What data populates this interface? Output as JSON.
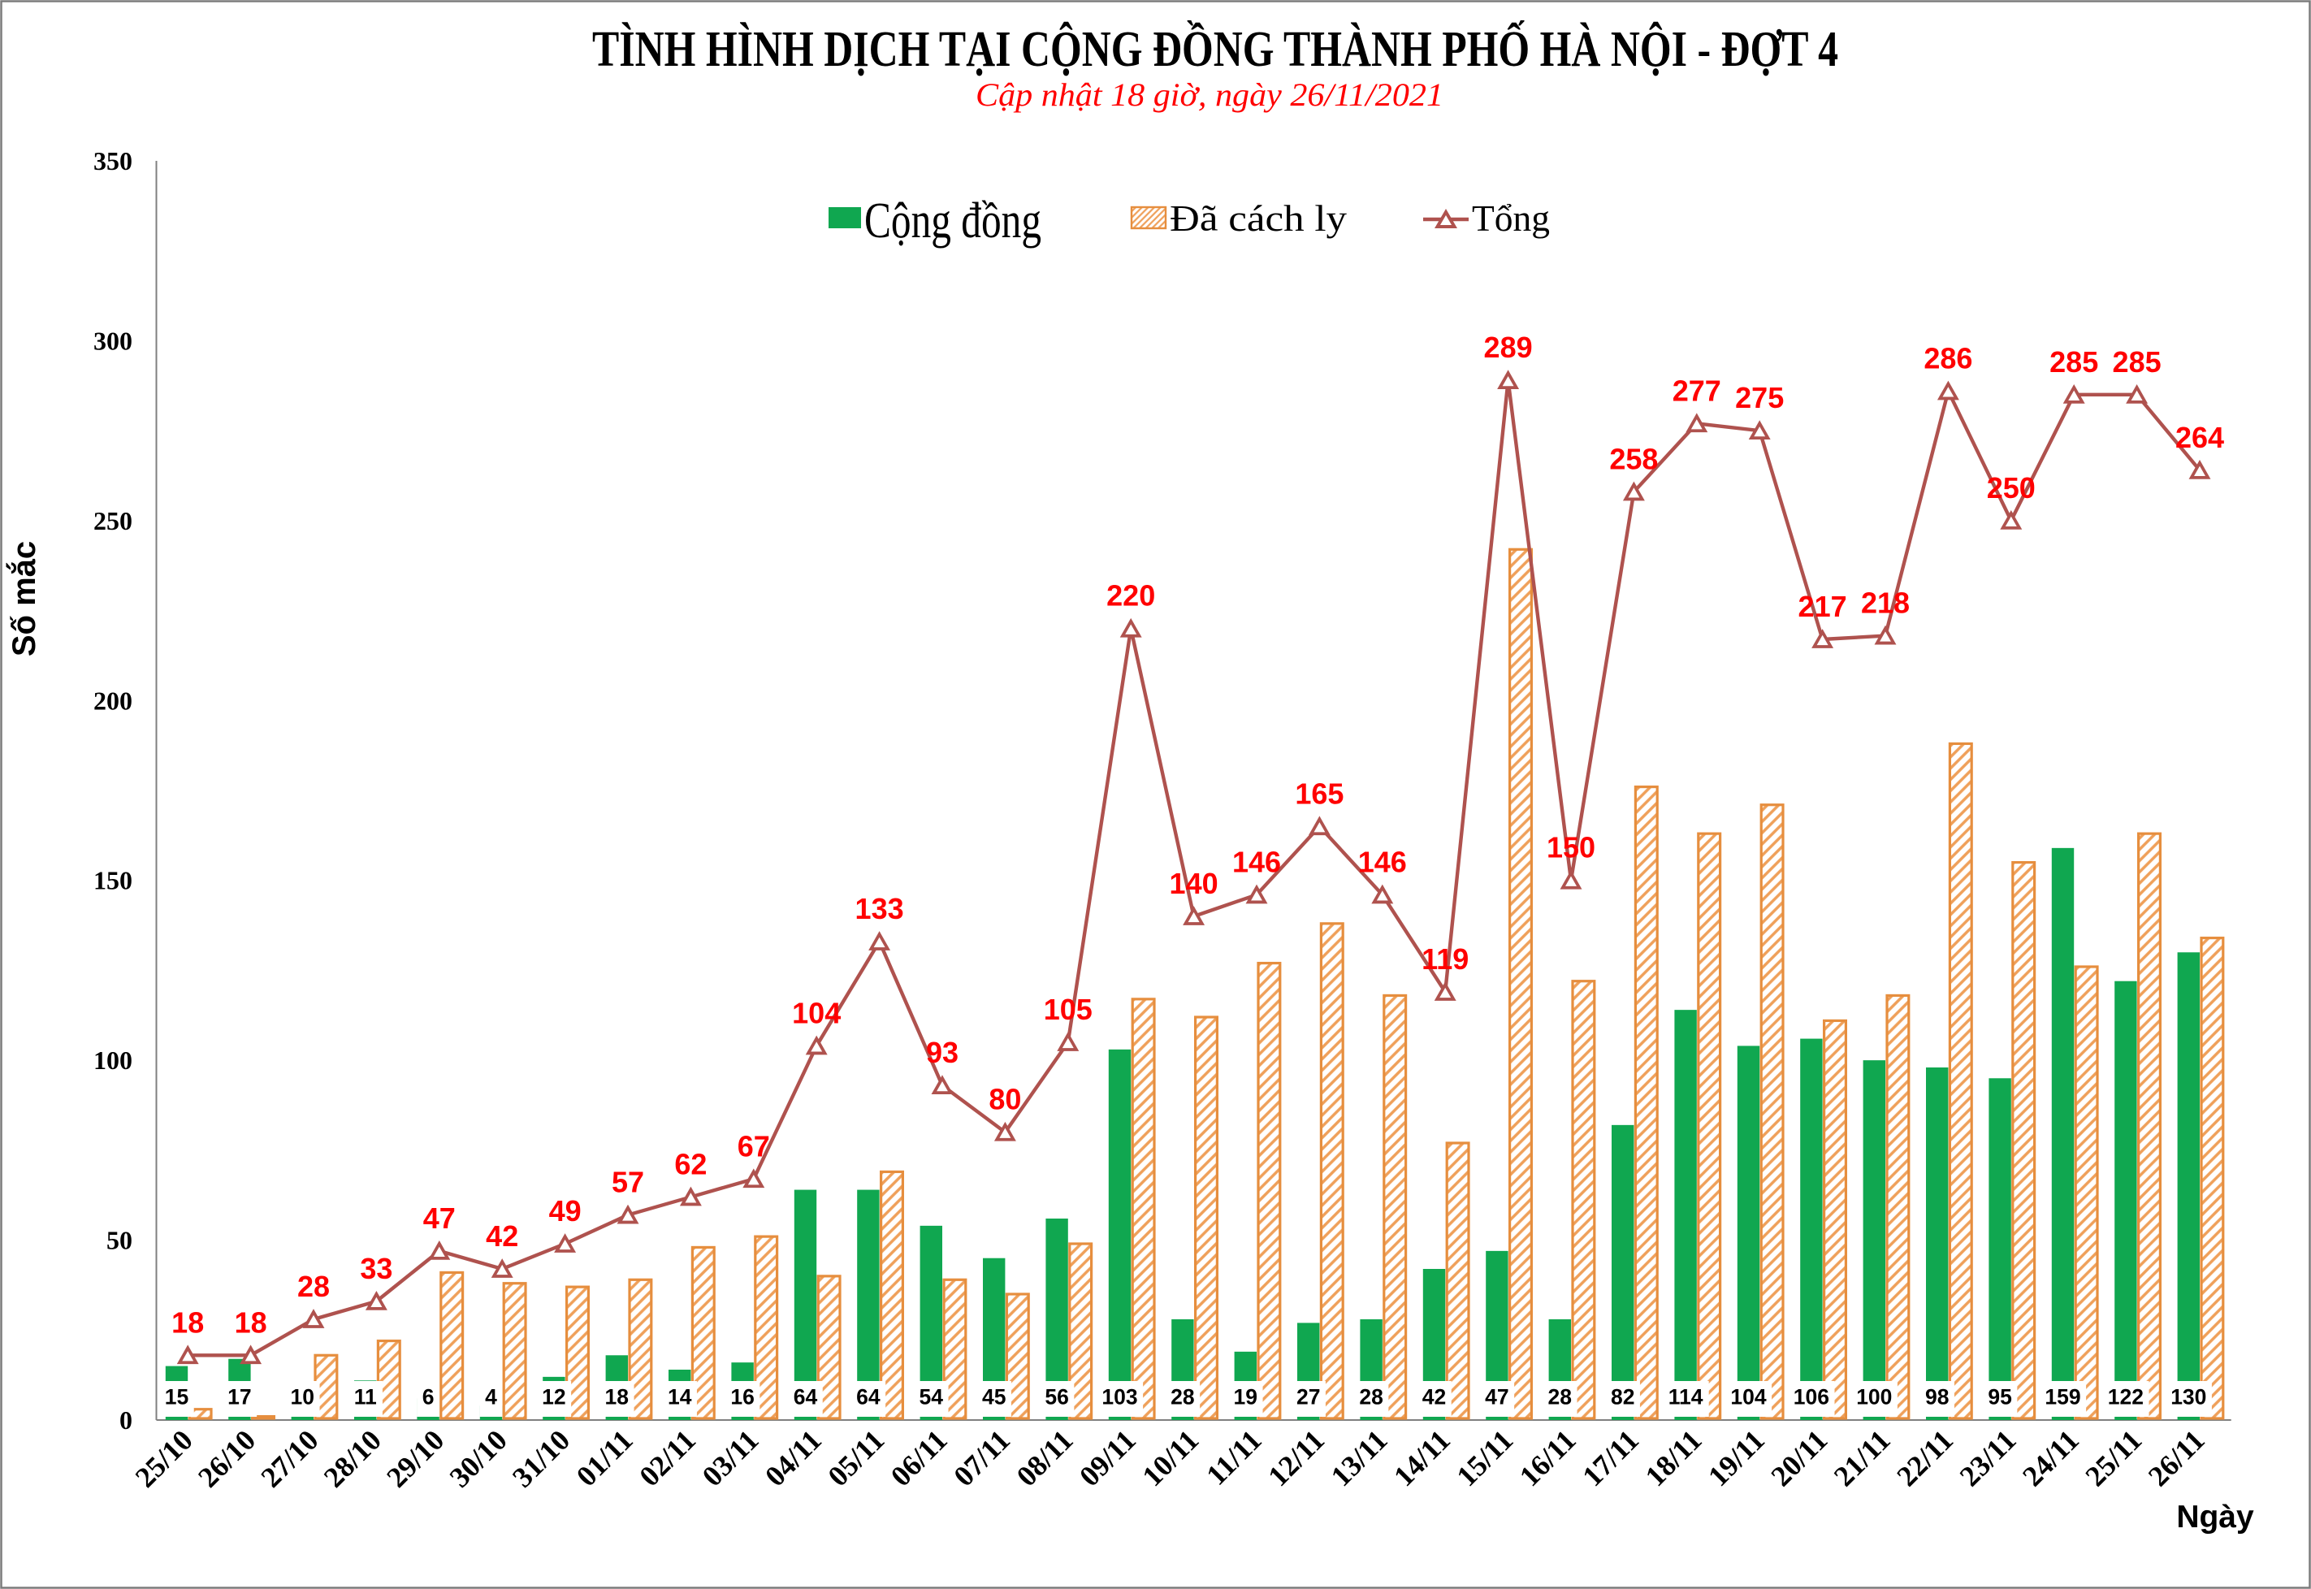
{
  "chart_data": {
    "type": "bar",
    "subtype": "clustered-bars-with-line",
    "title": "TÌNH HÌNH DỊCH TẠI CỘNG ĐỒNG THÀNH PHỐ HÀ NỘI - ĐỢT 4",
    "subtitle": "Cập nhật 18 giờ, ngày 26/11/2021",
    "xlabel": "Ngày",
    "ylabel": "Số mắc",
    "ylim": [
      0,
      350
    ],
    "ytick_step": 50,
    "yticks": [
      0,
      50,
      100,
      150,
      200,
      250,
      300,
      350
    ],
    "grid": "off",
    "legend_position": "top",
    "categories": [
      "25/10",
      "26/10",
      "27/10",
      "28/10",
      "29/10",
      "30/10",
      "31/10",
      "01/11",
      "02/11",
      "03/11",
      "04/11",
      "05/11",
      "06/11",
      "07/11",
      "08/11",
      "09/11",
      "10/11",
      "11/11",
      "12/11",
      "13/11",
      "14/11",
      "15/11",
      "16/11",
      "17/11",
      "18/11",
      "19/11",
      "20/11",
      "21/11",
      "22/11",
      "23/11",
      "24/11",
      "25/11",
      "26/11"
    ],
    "series": [
      {
        "name": "Cộng đồng",
        "type": "bar",
        "style": "solid",
        "color": "#10A750",
        "data_labels": "inside-base-white-box",
        "values": [
          15,
          17,
          10,
          11,
          6,
          4,
          12,
          18,
          14,
          16,
          64,
          64,
          54,
          45,
          56,
          103,
          28,
          19,
          27,
          28,
          42,
          47,
          28,
          82,
          114,
          104,
          106,
          100,
          98,
          95,
          159,
          122,
          130
        ]
      },
      {
        "name": "Đã cách ly",
        "type": "bar",
        "style": "hatched-diagonal",
        "color": "#EFA05A",
        "border_color": "#E68E3E",
        "data_labels": "none",
        "values": [
          3,
          1,
          18,
          22,
          41,
          38,
          37,
          39,
          48,
          51,
          40,
          69,
          39,
          35,
          49,
          117,
          112,
          127,
          138,
          118,
          77,
          242,
          122,
          176,
          163,
          171,
          111,
          118,
          188,
          155,
          126,
          163,
          134
        ]
      },
      {
        "name": "Tổng",
        "type": "line",
        "style": "line-with-hollow-triangle-markers",
        "color": "#AF524E",
        "marker": "triangle-up-hollow",
        "label_color": "#FF0000",
        "data_labels": "above",
        "values": [
          18,
          18,
          28,
          33,
          47,
          42,
          49,
          57,
          62,
          67,
          104,
          133,
          93,
          80,
          105,
          220,
          140,
          146,
          165,
          146,
          119,
          289,
          150,
          258,
          277,
          275,
          217,
          218,
          286,
          250,
          285,
          285,
          264
        ]
      }
    ],
    "axis_color": "#808080",
    "frame_color": "#7B7B7B",
    "background": "#FFFFFF"
  }
}
